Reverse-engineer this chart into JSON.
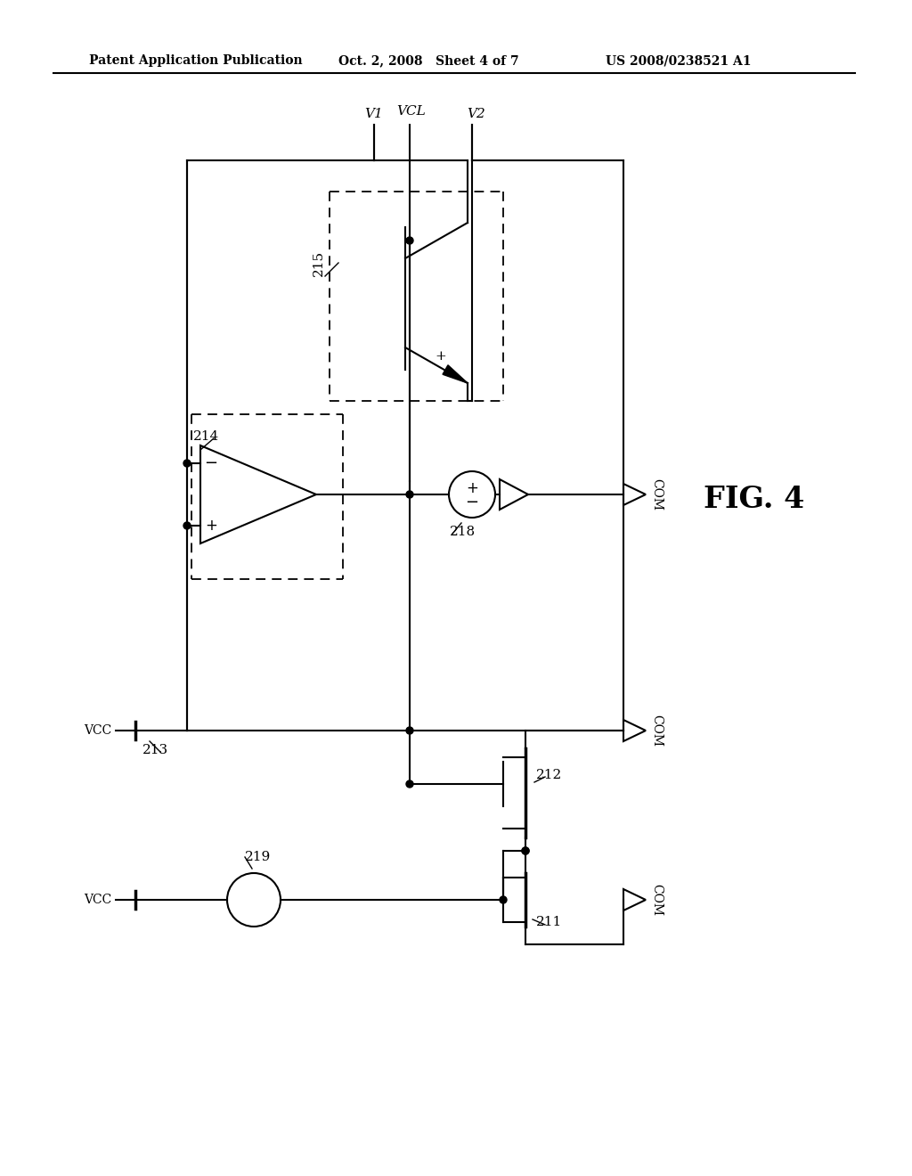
{
  "bg_color": "#ffffff",
  "line_color": "#000000",
  "header_left": "Patent Application Publication",
  "header_center": "Oct. 2, 2008   Sheet 4 of 7",
  "header_right": "US 2008/0238521 A1",
  "fig_label": "FIG. 4",
  "labels": {
    "V1": "V1",
    "VCL": "VCL",
    "V2": "V2",
    "VCC": "VCC",
    "COM": "COM",
    "label_214": "214",
    "label_215": "215",
    "label_218": "218",
    "label_213": "213",
    "label_212": "212",
    "label_219": "219",
    "label_211": "211"
  }
}
